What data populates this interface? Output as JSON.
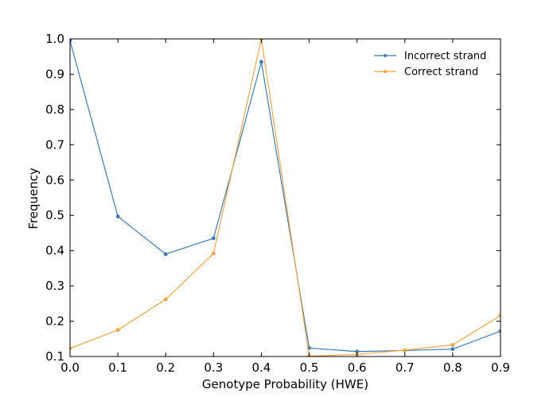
{
  "chart_data": {
    "type": "line",
    "title": "",
    "xlabel": "Genotype Probability (HWE)",
    "ylabel": "Frequency",
    "xlim": [
      0.0,
      0.9
    ],
    "ylim": [
      0.1,
      1.0
    ],
    "xticks": [
      "0.0",
      "0.1",
      "0.2",
      "0.3",
      "0.4",
      "0.5",
      "0.6",
      "0.7",
      "0.8",
      "0.9"
    ],
    "yticks": [
      "0.1",
      "0.2",
      "0.3",
      "0.4",
      "0.5",
      "0.6",
      "0.7",
      "0.8",
      "0.9",
      "1.0"
    ],
    "grid": false,
    "legend_position": "top-right",
    "x": [
      0.0,
      0.1,
      0.2,
      0.3,
      0.4,
      0.5,
      0.6,
      0.7,
      0.8,
      0.9
    ],
    "series": [
      {
        "name": "Incorrect strand",
        "color": "#3a7cb8",
        "values": [
          0.995,
          0.497,
          0.39,
          0.435,
          0.935,
          0.124,
          0.114,
          0.117,
          0.121,
          0.172
        ]
      },
      {
        "name": "Correct strand",
        "color": "#f4a641",
        "values": [
          0.123,
          0.175,
          0.262,
          0.392,
          1.0,
          0.101,
          0.106,
          0.118,
          0.133,
          0.216
        ]
      }
    ]
  }
}
